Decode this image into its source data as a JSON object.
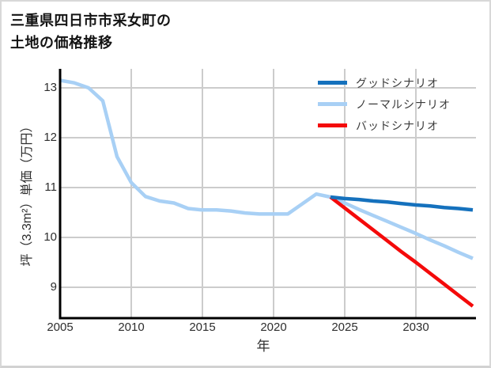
{
  "title": {
    "line1": "三重県四日市市采女町の",
    "line2": "土地の価格推移"
  },
  "axes": {
    "y_label": "坪（3.3m²）単価（万円）",
    "x_label": "年",
    "y_ticks": [
      13,
      12,
      11,
      10,
      9
    ],
    "x_ticks": [
      2005,
      2010,
      2015,
      2020,
      2025,
      2030
    ]
  },
  "legend": [
    {
      "id": "good",
      "label": "グッドシナリオ"
    },
    {
      "id": "normal",
      "label": "ノーマルシナリオ"
    },
    {
      "id": "bad",
      "label": "バッドシナリオ"
    }
  ],
  "colors": {
    "good": "#1571bd",
    "normal": "#a8d0f5",
    "bad": "#f40a0a",
    "grid": "#cccccc",
    "axis": "#000000",
    "tick_text": "#2e2e2e",
    "legend_text": "#3a3a3a",
    "title_text": "#141414"
  },
  "chart_data": {
    "type": "line",
    "title": "三重県四日市市采女町の 土地の価格推移",
    "xlabel": "年",
    "ylabel": "坪（3.3m²）単価（万円）",
    "xlim": [
      2005,
      2034.2
    ],
    "ylim": [
      8.4,
      13.4
    ],
    "grid": true,
    "legend_position": "upper-right",
    "x_ticks": [
      2005,
      2010,
      2015,
      2020,
      2025,
      2030
    ],
    "y_ticks": [
      13,
      12,
      11,
      10,
      9
    ],
    "series": [
      {
        "id": "history",
        "label": null,
        "color_key": "normal",
        "x": [
          2005,
          2006,
          2007,
          2008,
          2009,
          2010,
          2011,
          2012,
          2013,
          2014,
          2015,
          2016,
          2017,
          2018,
          2019,
          2020,
          2021,
          2022,
          2023,
          2024
        ],
        "y": [
          13.15,
          13.1,
          13.0,
          12.74,
          11.62,
          11.1,
          10.82,
          10.73,
          10.69,
          10.58,
          10.55,
          10.55,
          10.53,
          10.49,
          10.47,
          10.47,
          10.47,
          10.67,
          10.87,
          10.81
        ]
      },
      {
        "id": "normal",
        "label": "ノーマルシナリオ",
        "color_key": "normal",
        "x": [
          2024,
          2025,
          2026,
          2027,
          2028,
          2029,
          2030,
          2031,
          2032,
          2033,
          2034
        ],
        "y": [
          10.81,
          10.69,
          10.56,
          10.44,
          10.32,
          10.2,
          10.08,
          9.95,
          9.83,
          9.7,
          9.58
        ]
      },
      {
        "id": "bad",
        "label": "バッドシナリオ",
        "color_key": "bad",
        "x": [
          2024,
          2025,
          2026,
          2027,
          2028,
          2029,
          2030,
          2031,
          2032,
          2033,
          2034
        ],
        "y": [
          10.81,
          10.59,
          10.37,
          10.15,
          9.93,
          9.71,
          9.5,
          9.28,
          9.06,
          8.84,
          8.62
        ]
      },
      {
        "id": "good",
        "label": "グッドシナリオ",
        "color_key": "good",
        "x": [
          2024,
          2025,
          2026,
          2027,
          2028,
          2029,
          2030,
          2031,
          2032,
          2033,
          2034
        ],
        "y": [
          10.81,
          10.78,
          10.76,
          10.73,
          10.71,
          10.68,
          10.65,
          10.63,
          10.6,
          10.58,
          10.55
        ]
      }
    ]
  }
}
